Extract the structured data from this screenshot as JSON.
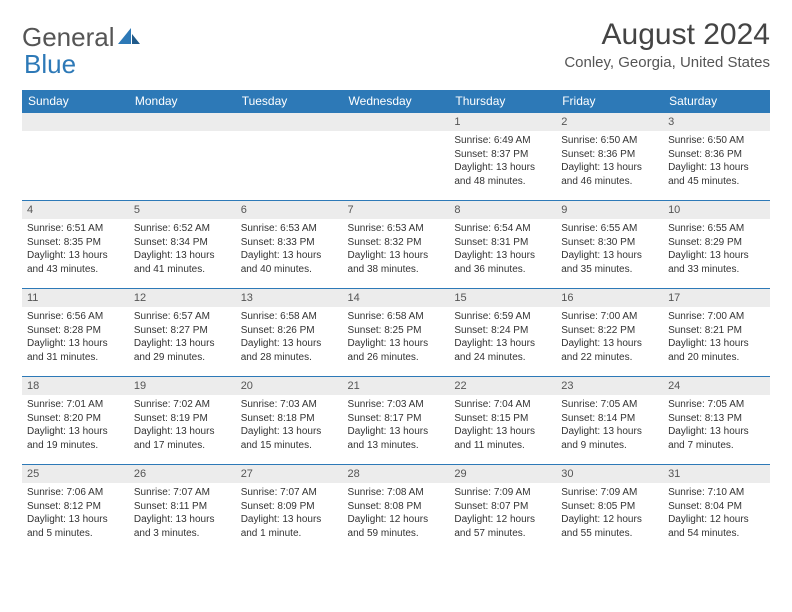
{
  "brand": {
    "part1": "General",
    "part2": "Blue"
  },
  "title": "August 2024",
  "location": "Conley, Georgia, United States",
  "colors": {
    "header_bg": "#2d79b7",
    "header_text": "#ffffff",
    "daynum_bg": "#ececec",
    "text": "#333333",
    "rule": "#2d79b7"
  },
  "dayHeaders": [
    "Sunday",
    "Monday",
    "Tuesday",
    "Wednesday",
    "Thursday",
    "Friday",
    "Saturday"
  ],
  "weeks": [
    [
      {
        "n": "",
        "sr": "",
        "ss": "",
        "dl": ""
      },
      {
        "n": "",
        "sr": "",
        "ss": "",
        "dl": ""
      },
      {
        "n": "",
        "sr": "",
        "ss": "",
        "dl": ""
      },
      {
        "n": "",
        "sr": "",
        "ss": "",
        "dl": ""
      },
      {
        "n": "1",
        "sr": "6:49 AM",
        "ss": "8:37 PM",
        "dl": "13 hours and 48 minutes."
      },
      {
        "n": "2",
        "sr": "6:50 AM",
        "ss": "8:36 PM",
        "dl": "13 hours and 46 minutes."
      },
      {
        "n": "3",
        "sr": "6:50 AM",
        "ss": "8:36 PM",
        "dl": "13 hours and 45 minutes."
      }
    ],
    [
      {
        "n": "4",
        "sr": "6:51 AM",
        "ss": "8:35 PM",
        "dl": "13 hours and 43 minutes."
      },
      {
        "n": "5",
        "sr": "6:52 AM",
        "ss": "8:34 PM",
        "dl": "13 hours and 41 minutes."
      },
      {
        "n": "6",
        "sr": "6:53 AM",
        "ss": "8:33 PM",
        "dl": "13 hours and 40 minutes."
      },
      {
        "n": "7",
        "sr": "6:53 AM",
        "ss": "8:32 PM",
        "dl": "13 hours and 38 minutes."
      },
      {
        "n": "8",
        "sr": "6:54 AM",
        "ss": "8:31 PM",
        "dl": "13 hours and 36 minutes."
      },
      {
        "n": "9",
        "sr": "6:55 AM",
        "ss": "8:30 PM",
        "dl": "13 hours and 35 minutes."
      },
      {
        "n": "10",
        "sr": "6:55 AM",
        "ss": "8:29 PM",
        "dl": "13 hours and 33 minutes."
      }
    ],
    [
      {
        "n": "11",
        "sr": "6:56 AM",
        "ss": "8:28 PM",
        "dl": "13 hours and 31 minutes."
      },
      {
        "n": "12",
        "sr": "6:57 AM",
        "ss": "8:27 PM",
        "dl": "13 hours and 29 minutes."
      },
      {
        "n": "13",
        "sr": "6:58 AM",
        "ss": "8:26 PM",
        "dl": "13 hours and 28 minutes."
      },
      {
        "n": "14",
        "sr": "6:58 AM",
        "ss": "8:25 PM",
        "dl": "13 hours and 26 minutes."
      },
      {
        "n": "15",
        "sr": "6:59 AM",
        "ss": "8:24 PM",
        "dl": "13 hours and 24 minutes."
      },
      {
        "n": "16",
        "sr": "7:00 AM",
        "ss": "8:22 PM",
        "dl": "13 hours and 22 minutes."
      },
      {
        "n": "17",
        "sr": "7:00 AM",
        "ss": "8:21 PM",
        "dl": "13 hours and 20 minutes."
      }
    ],
    [
      {
        "n": "18",
        "sr": "7:01 AM",
        "ss": "8:20 PM",
        "dl": "13 hours and 19 minutes."
      },
      {
        "n": "19",
        "sr": "7:02 AM",
        "ss": "8:19 PM",
        "dl": "13 hours and 17 minutes."
      },
      {
        "n": "20",
        "sr": "7:03 AM",
        "ss": "8:18 PM",
        "dl": "13 hours and 15 minutes."
      },
      {
        "n": "21",
        "sr": "7:03 AM",
        "ss": "8:17 PM",
        "dl": "13 hours and 13 minutes."
      },
      {
        "n": "22",
        "sr": "7:04 AM",
        "ss": "8:15 PM",
        "dl": "13 hours and 11 minutes."
      },
      {
        "n": "23",
        "sr": "7:05 AM",
        "ss": "8:14 PM",
        "dl": "13 hours and 9 minutes."
      },
      {
        "n": "24",
        "sr": "7:05 AM",
        "ss": "8:13 PM",
        "dl": "13 hours and 7 minutes."
      }
    ],
    [
      {
        "n": "25",
        "sr": "7:06 AM",
        "ss": "8:12 PM",
        "dl": "13 hours and 5 minutes."
      },
      {
        "n": "26",
        "sr": "7:07 AM",
        "ss": "8:11 PM",
        "dl": "13 hours and 3 minutes."
      },
      {
        "n": "27",
        "sr": "7:07 AM",
        "ss": "8:09 PM",
        "dl": "13 hours and 1 minute."
      },
      {
        "n": "28",
        "sr": "7:08 AM",
        "ss": "8:08 PM",
        "dl": "12 hours and 59 minutes."
      },
      {
        "n": "29",
        "sr": "7:09 AM",
        "ss": "8:07 PM",
        "dl": "12 hours and 57 minutes."
      },
      {
        "n": "30",
        "sr": "7:09 AM",
        "ss": "8:05 PM",
        "dl": "12 hours and 55 minutes."
      },
      {
        "n": "31",
        "sr": "7:10 AM",
        "ss": "8:04 PM",
        "dl": "12 hours and 54 minutes."
      }
    ]
  ],
  "labels": {
    "sunrise": "Sunrise:",
    "sunset": "Sunset:",
    "daylight": "Daylight:"
  }
}
